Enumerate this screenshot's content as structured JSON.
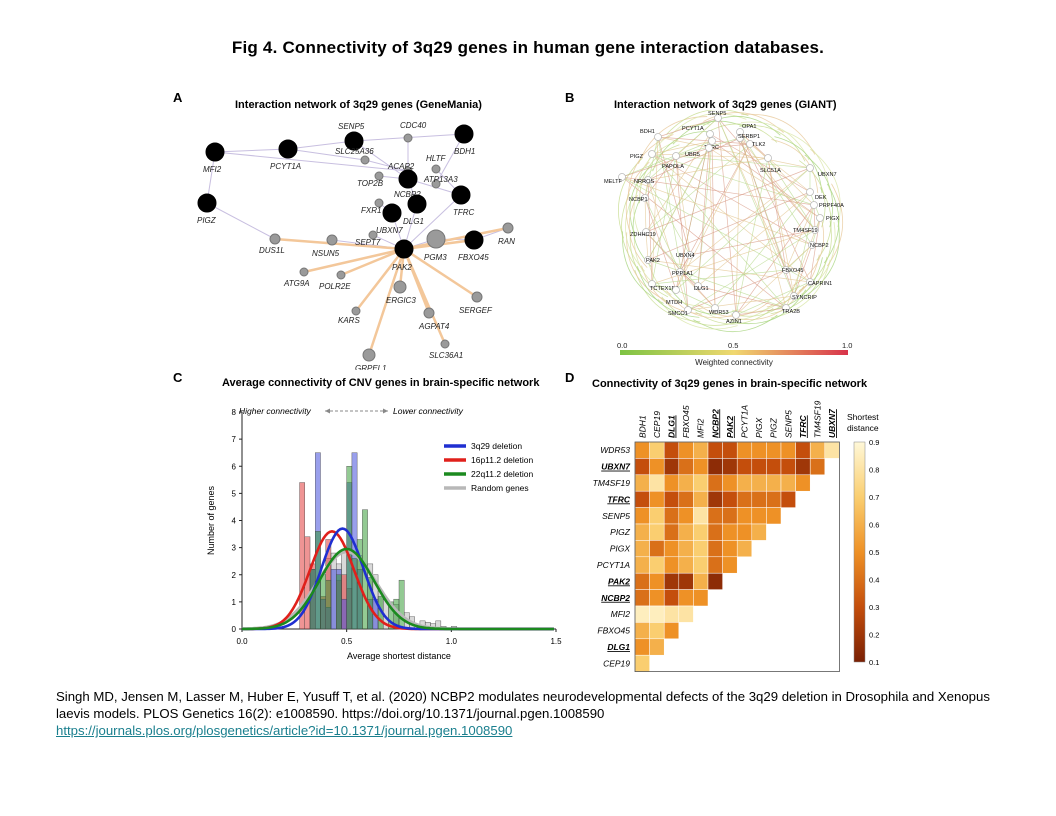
{
  "figure_title": "Fig 4. Connectivity of 3q29 genes in human gene interaction databases.",
  "panels": {
    "a": {
      "label": "A",
      "title": "Interaction network of 3q29 genes (GeneMania)",
      "nodes": [
        "SENP5",
        "CDC40",
        "BDH1",
        "MFI2",
        "PCYT1A",
        "SLC25A36",
        "HLTF",
        "ACAP2",
        "ATP13A3",
        "TOP2B",
        "NCBP2",
        "FXR1",
        "TFRC",
        "PIGZ",
        "UBXN7",
        "DLG1",
        "SEPT7",
        "DUS1L",
        "NSUN5",
        "PAK2",
        "PGM3",
        "FBXO45",
        "RAN",
        "ATG9A",
        "POLR2E",
        "ERGIC3",
        "SERGEF",
        "KARS",
        "AGPAT4",
        "SLC36A1",
        "GRPEL1"
      ]
    },
    "b": {
      "label": "B",
      "title": "Interaction network of 3q29 genes (GIANT)",
      "nodes": [
        "SENP5",
        "PCYT1A",
        "OPA1",
        "BDH1",
        "TFRC",
        "SERBP1",
        "TLK2",
        "PIGZ",
        "PAPOLA",
        "UBR5",
        "SLC51A",
        "UBXN7",
        "MELTF",
        "NRROS",
        "DEK",
        "PRPF40A",
        "NCBP1",
        "PIGX",
        "TM4SF19",
        "ZDHHC19",
        "NCBP2",
        "UBXN4",
        "PAK2",
        "FBXO45",
        "PPP1A1",
        "CAPRIN1",
        "TCTEX1D2",
        "DLG1",
        "SYNCRIP",
        "MTDH",
        "TRA2B",
        "SMCO1",
        "WDR53",
        "AZIN1"
      ],
      "legend_title": "Weighted connectivity",
      "legend_min": "0.0",
      "legend_mid": "0.5",
      "legend_max": "1.0"
    },
    "c": {
      "label": "C",
      "title": "Average connectivity of CNV genes in brain-specific network",
      "higher": "Higher connectivity",
      "lower": "Lower connectivity"
    },
    "d": {
      "label": "D",
      "title": "Connectivity of 3q29 genes in brain-specific network",
      "legend_title_1": "Shortest",
      "legend_title_2": "distance",
      "legend_ticks": [
        "0.9",
        "0.8",
        "0.7",
        "0.6",
        "0.5",
        "0.4",
        "0.3",
        "0.2",
        "0.1"
      ]
    }
  },
  "chart_data": [
    {
      "type": "bar",
      "title": "Average connectivity of CNV genes in brain-specific network",
      "xlabel": "Average shortest distance",
      "ylabel": "Number of genes",
      "xlim": [
        0.0,
        1.5
      ],
      "ylim": [
        0,
        8
      ],
      "xticks": [
        "0.0",
        "0.5",
        "1.0",
        "1.5"
      ],
      "yticks": [
        "0",
        "1",
        "2",
        "3",
        "4",
        "5",
        "6",
        "7",
        "8"
      ],
      "bin_width": 0.025,
      "series": [
        {
          "name": "3q29 deletion",
          "color": "#1f2fd1",
          "bins": [
            {
              "x": 0.325,
              "y": 2.2
            },
            {
              "x": 0.35,
              "y": 6.5
            },
            {
              "x": 0.375,
              "y": 1.1
            },
            {
              "x": 0.4,
              "y": 0.8
            },
            {
              "x": 0.425,
              "y": 2.2
            },
            {
              "x": 0.45,
              "y": 2.2
            },
            {
              "x": 0.475,
              "y": 1.1
            },
            {
              "x": 0.5,
              "y": 5.4
            },
            {
              "x": 0.525,
              "y": 6.5
            },
            {
              "x": 0.55,
              "y": 2.2
            },
            {
              "x": 0.6,
              "y": 1.1
            },
            {
              "x": 0.625,
              "y": 1.1
            }
          ],
          "curve_mean": 0.48,
          "curve_sd": 0.1,
          "curve_peak": 3.7
        },
        {
          "name": "16p11.2 deletion",
          "color": "#e0201b",
          "bins": [
            {
              "x": 0.275,
              "y": 5.4
            },
            {
              "x": 0.3,
              "y": 3.4
            },
            {
              "x": 0.325,
              "y": 2.4
            },
            {
              "x": 0.375,
              "y": 1.2
            },
            {
              "x": 0.4,
              "y": 3.3
            },
            {
              "x": 0.45,
              "y": 1.8
            },
            {
              "x": 0.475,
              "y": 2.0
            },
            {
              "x": 0.5,
              "y": 1.5
            }
          ],
          "curve_mean": 0.43,
          "curve_sd": 0.105,
          "curve_peak": 3.6
        },
        {
          "name": "22q11.2 deletion",
          "color": "#1b8a1f",
          "bins": [
            {
              "x": 0.325,
              "y": 2.2
            },
            {
              "x": 0.35,
              "y": 3.6
            },
            {
              "x": 0.375,
              "y": 2.0
            },
            {
              "x": 0.4,
              "y": 1.8
            },
            {
              "x": 0.45,
              "y": 2.0
            },
            {
              "x": 0.5,
              "y": 6.0
            },
            {
              "x": 0.525,
              "y": 2.6
            },
            {
              "x": 0.55,
              "y": 3.3
            },
            {
              "x": 0.575,
              "y": 4.4
            },
            {
              "x": 0.6,
              "y": 1.9
            },
            {
              "x": 0.65,
              "y": 1.2
            },
            {
              "x": 0.7,
              "y": 1.0
            },
            {
              "x": 0.725,
              "y": 1.1
            },
            {
              "x": 0.75,
              "y": 1.8
            }
          ],
          "curve_mean": 0.5,
          "curve_sd": 0.13,
          "curve_peak": 2.95
        },
        {
          "name": "Random genes",
          "color": "#b8b8b8",
          "bins": [
            {
              "x": 0.4,
              "y": 2.6
            },
            {
              "x": 0.425,
              "y": 2.8
            },
            {
              "x": 0.45,
              "y": 2.4
            },
            {
              "x": 0.475,
              "y": 2.9
            },
            {
              "x": 0.55,
              "y": 2.7
            },
            {
              "x": 0.6,
              "y": 2.4
            },
            {
              "x": 0.625,
              "y": 2.0
            },
            {
              "x": 0.65,
              "y": 1.4
            },
            {
              "x": 0.675,
              "y": 1.1
            },
            {
              "x": 0.725,
              "y": 0.9
            },
            {
              "x": 0.775,
              "y": 0.6
            },
            {
              "x": 0.8,
              "y": 0.45
            },
            {
              "x": 0.85,
              "y": 0.3
            },
            {
              "x": 0.875,
              "y": 0.25
            },
            {
              "x": 0.9,
              "y": 0.2
            },
            {
              "x": 0.925,
              "y": 0.3
            },
            {
              "x": 0.95,
              "y": 0.1
            },
            {
              "x": 1.0,
              "y": 0.1
            }
          ],
          "curve_mean": 0.5,
          "curve_sd": 0.14,
          "curve_peak": 2.85
        }
      ],
      "annotations": [
        "Higher connectivity",
        "Lower connectivity"
      ]
    },
    {
      "type": "heatmap",
      "title": "Connectivity of 3q29 genes in brain-specific network",
      "columns": [
        {
          "name": "BDH1",
          "bold": false
        },
        {
          "name": "CEP19",
          "bold": false
        },
        {
          "name": "DLG1",
          "bold": true
        },
        {
          "name": "FBXO45",
          "bold": false
        },
        {
          "name": "MFI2",
          "bold": false
        },
        {
          "name": "NCBP2",
          "bold": true
        },
        {
          "name": "PAK2",
          "bold": true
        },
        {
          "name": "PCYT1A",
          "bold": false
        },
        {
          "name": "PIGX",
          "bold": false
        },
        {
          "name": "PIGZ",
          "bold": false
        },
        {
          "name": "SENP5",
          "bold": false
        },
        {
          "name": "TFRC",
          "bold": true
        },
        {
          "name": "TM4SF19",
          "bold": false
        },
        {
          "name": "UBXN7",
          "bold": true
        }
      ],
      "rows": [
        {
          "name": "WDR53",
          "bold": false
        },
        {
          "name": "UBXN7",
          "bold": true
        },
        {
          "name": "TM4SF19",
          "bold": false
        },
        {
          "name": "TFRC",
          "bold": true
        },
        {
          "name": "SENP5",
          "bold": false
        },
        {
          "name": "PIGZ",
          "bold": false
        },
        {
          "name": "PIGX",
          "bold": false
        },
        {
          "name": "PCYT1A",
          "bold": false
        },
        {
          "name": "PAK2",
          "bold": true
        },
        {
          "name": "NCBP2",
          "bold": true
        },
        {
          "name": "MFI2",
          "bold": false
        },
        {
          "name": "FBXO45",
          "bold": false
        },
        {
          "name": "DLG1",
          "bold": true
        },
        {
          "name": "CEP19",
          "bold": false
        }
      ],
      "values": [
        [
          0.5,
          0.7,
          0.3,
          0.5,
          0.6,
          0.3,
          0.3,
          0.5,
          0.5,
          0.5,
          0.5,
          0.3,
          0.6,
          0.8
        ],
        [
          0.3,
          0.5,
          0.2,
          0.4,
          0.5,
          0.15,
          0.2,
          0.3,
          0.3,
          0.3,
          0.3,
          0.2,
          0.4
        ],
        [
          0.6,
          0.8,
          0.5,
          0.6,
          0.7,
          0.4,
          0.5,
          0.6,
          0.6,
          0.6,
          0.6,
          0.5
        ],
        [
          0.3,
          0.5,
          0.3,
          0.4,
          0.6,
          0.2,
          0.3,
          0.4,
          0.4,
          0.4,
          0.3
        ],
        [
          0.5,
          0.7,
          0.4,
          0.5,
          0.8,
          0.4,
          0.4,
          0.5,
          0.5,
          0.5
        ],
        [
          0.6,
          0.7,
          0.4,
          0.6,
          0.7,
          0.4,
          0.5,
          0.5,
          0.6
        ],
        [
          0.6,
          0.4,
          0.5,
          0.6,
          0.7,
          0.4,
          0.5,
          0.6
        ],
        [
          0.6,
          0.7,
          0.5,
          0.6,
          0.7,
          0.4,
          0.5
        ],
        [
          0.4,
          0.5,
          0.2,
          0.2,
          0.6,
          0.15
        ],
        [
          0.4,
          0.5,
          0.3,
          0.5,
          0.5
        ],
        [
          0.85,
          0.85,
          0.8,
          0.8
        ],
        [
          0.6,
          0.7,
          0.5
        ],
        [
          0.5,
          0.6
        ],
        [
          0.7
        ]
      ],
      "value_range": [
        0.1,
        0.9
      ],
      "legend_label": "Shortest distance"
    }
  ],
  "citation": {
    "text": "Singh MD, Jensen M, Lasser M, Huber E, Yusuff T, et al. (2020) NCBP2 modulates neurodevelopmental defects of the 3q29 deletion in Drosophila and Xenopus laevis models. PLOS Genetics 16(2): e1008590. https://doi.org/10.1371/journal.pgen.1008590",
    "link": "https://journals.plos.org/plosgenetics/article?id=10.1371/journal.pgen.1008590"
  }
}
